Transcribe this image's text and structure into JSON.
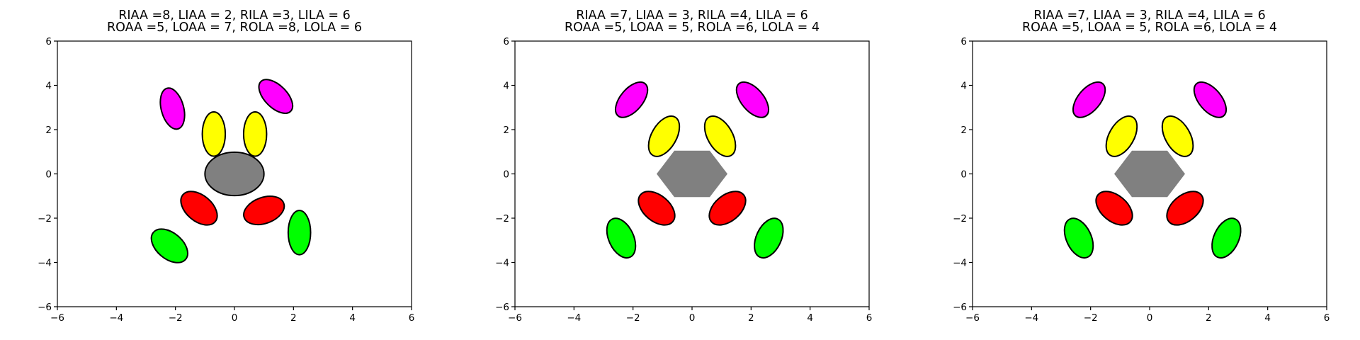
{
  "chart_data": [
    {
      "type": "diagram",
      "title_lines": [
        "RIAA =8, LIAA = 2, RILA =3, LILA = 6",
        "ROAA =5, LOAA = 7, ROLA =8, LOLA = 6"
      ],
      "xlim": [
        -6,
        6
      ],
      "ylim": [
        -6,
        6
      ],
      "xticks": [
        -6,
        -4,
        -2,
        0,
        2,
        4,
        6
      ],
      "yticks": [
        -6,
        -4,
        -2,
        0,
        2,
        4,
        6
      ],
      "tick_labels": [
        "−6",
        "−4",
        "−2",
        "0",
        "2",
        "4",
        "6"
      ],
      "body": {
        "shape": "ellipse",
        "cx": 0,
        "cy": 0,
        "rx": 1.0,
        "ry": 1.0,
        "color": "#808080",
        "outlined": true
      },
      "limbs": [
        {
          "segment": "inner",
          "color": "#ffff00",
          "cx": -0.7,
          "cy": 1.8,
          "major": 1.0,
          "minor": 0.39,
          "angle": 0
        },
        {
          "segment": "inner",
          "color": "#ffff00",
          "cx": 0.7,
          "cy": 1.8,
          "major": 1.0,
          "minor": 0.39,
          "angle": 0
        },
        {
          "segment": "inner",
          "color": "#ff0000",
          "cx": -1.2,
          "cy": -1.55,
          "major": 0.95,
          "minor": 0.44,
          "angle": -50
        },
        {
          "segment": "inner",
          "color": "#ff0000",
          "cx": 1.0,
          "cy": -1.65,
          "major": 0.95,
          "minor": 0.44,
          "angle": 70
        },
        {
          "segment": "outer",
          "color": "#ff00ff",
          "cx": -2.1,
          "cy": 2.95,
          "major": 0.95,
          "minor": 0.38,
          "angle": -15
        },
        {
          "segment": "outer",
          "color": "#ff00ff",
          "cx": 1.4,
          "cy": 3.5,
          "major": 0.95,
          "minor": 0.38,
          "angle": -45
        },
        {
          "segment": "outer",
          "color": "#00ff00",
          "cx": -2.2,
          "cy": -3.25,
          "major": 0.95,
          "minor": 0.44,
          "angle": -50
        },
        {
          "segment": "outer",
          "color": "#00ff00",
          "cx": 2.2,
          "cy": -2.65,
          "major": 1.0,
          "minor": 0.38,
          "angle": 0
        }
      ]
    },
    {
      "type": "diagram",
      "title_lines": [
        "RIAA =7, LIAA = 3, RILA =4, LILA = 6",
        "ROAA =5, LOAA = 5, ROLA =6, LOLA = 4"
      ],
      "xlim": [
        -6,
        6
      ],
      "ylim": [
        -6,
        6
      ],
      "xticks": [
        -6,
        -4,
        -2,
        0,
        2,
        4,
        6
      ],
      "yticks": [
        -6,
        -4,
        -2,
        0,
        2,
        4,
        6
      ],
      "tick_labels": [
        "−6",
        "−4",
        "−2",
        "0",
        "2",
        "4",
        "6"
      ],
      "body": {
        "shape": "hexagon",
        "cx": 0,
        "cy": 0,
        "halfwidth": 1.2,
        "flat_halfwidth": 0.6,
        "halfheight": 1.05,
        "color": "#808080",
        "outlined": false
      },
      "limbs": [
        {
          "segment": "inner",
          "color": "#ffff00",
          "cx": -0.95,
          "cy": 1.7,
          "major": 1.0,
          "minor": 0.42,
          "angle": 30
        },
        {
          "segment": "inner",
          "color": "#ffff00",
          "cx": 0.95,
          "cy": 1.7,
          "major": 1.0,
          "minor": 0.42,
          "angle": -30
        },
        {
          "segment": "inner",
          "color": "#ff0000",
          "cx": -1.2,
          "cy": -1.55,
          "major": 0.95,
          "minor": 0.44,
          "angle": -50
        },
        {
          "segment": "inner",
          "color": "#ff0000",
          "cx": 1.2,
          "cy": -1.55,
          "major": 0.95,
          "minor": 0.44,
          "angle": 50
        },
        {
          "segment": "outer",
          "color": "#ff00ff",
          "cx": -2.05,
          "cy": 3.35,
          "major": 0.95,
          "minor": 0.38,
          "angle": 40
        },
        {
          "segment": "outer",
          "color": "#ff00ff",
          "cx": 2.05,
          "cy": 3.35,
          "major": 0.95,
          "minor": 0.38,
          "angle": -40
        },
        {
          "segment": "outer",
          "color": "#00ff00",
          "cx": -2.4,
          "cy": -2.9,
          "major": 0.95,
          "minor": 0.42,
          "angle": -25
        },
        {
          "segment": "outer",
          "color": "#00ff00",
          "cx": 2.6,
          "cy": -2.9,
          "major": 0.95,
          "minor": 0.42,
          "angle": 25
        }
      ]
    },
    {
      "type": "diagram",
      "title_lines": [
        "RIAA =7, LIAA = 3, RILA =4, LILA = 6",
        "ROAA =5, LOAA = 5, ROLA =6, LOLA = 4"
      ],
      "xlim": [
        -6,
        6
      ],
      "ylim": [
        -6,
        6
      ],
      "xticks": [
        -6,
        -4,
        -2,
        0,
        2,
        4,
        6
      ],
      "yticks": [
        -6,
        -4,
        -2,
        0,
        2,
        4,
        6
      ],
      "tick_labels": [
        "−6",
        "−4",
        "−2",
        "0",
        "2",
        "4",
        "6"
      ],
      "body": {
        "shape": "hexagon",
        "cx": 0,
        "cy": 0,
        "halfwidth": 1.2,
        "flat_halfwidth": 0.6,
        "halfheight": 1.05,
        "color": "#808080",
        "outlined": false
      },
      "limbs": [
        {
          "segment": "inner",
          "color": "#ffff00",
          "cx": -0.95,
          "cy": 1.7,
          "major": 1.0,
          "minor": 0.42,
          "angle": 30
        },
        {
          "segment": "inner",
          "color": "#ffff00",
          "cx": 0.95,
          "cy": 1.7,
          "major": 1.0,
          "minor": 0.42,
          "angle": -30
        },
        {
          "segment": "inner",
          "color": "#ff0000",
          "cx": -1.2,
          "cy": -1.55,
          "major": 0.95,
          "minor": 0.44,
          "angle": -50
        },
        {
          "segment": "inner",
          "color": "#ff0000",
          "cx": 1.2,
          "cy": -1.55,
          "major": 0.95,
          "minor": 0.44,
          "angle": 50
        },
        {
          "segment": "outer",
          "color": "#ff00ff",
          "cx": -2.05,
          "cy": 3.35,
          "major": 0.95,
          "minor": 0.38,
          "angle": 40
        },
        {
          "segment": "outer",
          "color": "#ff00ff",
          "cx": 2.05,
          "cy": 3.35,
          "major": 0.95,
          "minor": 0.38,
          "angle": -40
        },
        {
          "segment": "outer",
          "color": "#00ff00",
          "cx": -2.4,
          "cy": -2.9,
          "major": 0.95,
          "minor": 0.42,
          "angle": -25
        },
        {
          "segment": "outer",
          "color": "#00ff00",
          "cx": 2.6,
          "cy": -2.9,
          "major": 0.95,
          "minor": 0.42,
          "angle": 25
        }
      ]
    }
  ]
}
